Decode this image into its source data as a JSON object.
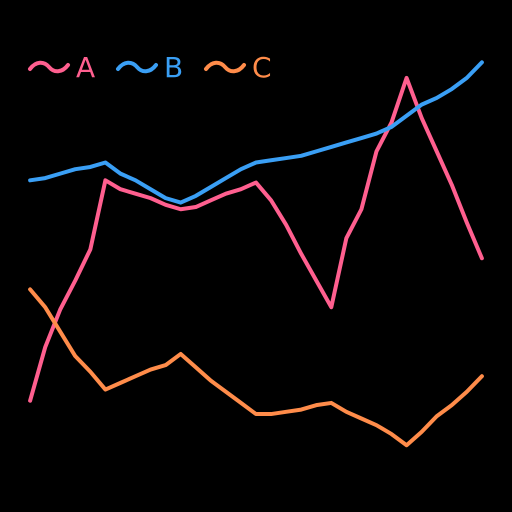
{
  "chart_data": {
    "type": "line",
    "title": "",
    "xlabel": "",
    "ylabel": "",
    "grid": false,
    "axes_visible": false,
    "legend_position": "top-left",
    "background": "#000000",
    "x": [
      0,
      1,
      2,
      3,
      4,
      5,
      6,
      7,
      8,
      9,
      10,
      11,
      12,
      13,
      14,
      15,
      16,
      17,
      18,
      19,
      20,
      21,
      22,
      23,
      24,
      25,
      26,
      27,
      28,
      29,
      30
    ],
    "series": [
      {
        "name": "A",
        "color": "#ff5f8f",
        "values": [
          0.0,
          0.24,
          0.41,
          0.54,
          0.68,
          0.99,
          0.95,
          0.93,
          0.91,
          0.88,
          0.86,
          0.87,
          0.9,
          0.93,
          0.95,
          0.98,
          0.9,
          0.79,
          0.66,
          0.54,
          0.42,
          0.73,
          0.86,
          1.12,
          1.25,
          1.45,
          1.27,
          1.12,
          0.97,
          0.8,
          0.64
        ]
      },
      {
        "name": "B",
        "color": "#3a9ff5",
        "values": [
          0.99,
          1.0,
          1.02,
          1.04,
          1.05,
          1.07,
          1.02,
          0.99,
          0.95,
          0.91,
          0.89,
          0.92,
          0.96,
          1.0,
          1.04,
          1.07,
          1.08,
          1.09,
          1.1,
          1.12,
          1.14,
          1.16,
          1.18,
          1.2,
          1.23,
          1.28,
          1.33,
          1.36,
          1.4,
          1.45,
          1.52
        ]
      },
      {
        "name": "C",
        "color": "#ff8c4a",
        "values": [
          0.5,
          0.42,
          0.31,
          0.2,
          0.13,
          0.05,
          0.08,
          0.11,
          0.14,
          0.16,
          0.21,
          0.15,
          0.09,
          0.04,
          -0.01,
          -0.06,
          -0.06,
          -0.05,
          -0.04,
          -0.02,
          -0.01,
          -0.05,
          -0.08,
          -0.11,
          -0.15,
          -0.2,
          -0.14,
          -0.07,
          -0.02,
          0.04,
          0.11
        ]
      }
    ],
    "ylim": [
      -0.5,
      1.8
    ],
    "xlim": [
      -2,
      32
    ]
  }
}
